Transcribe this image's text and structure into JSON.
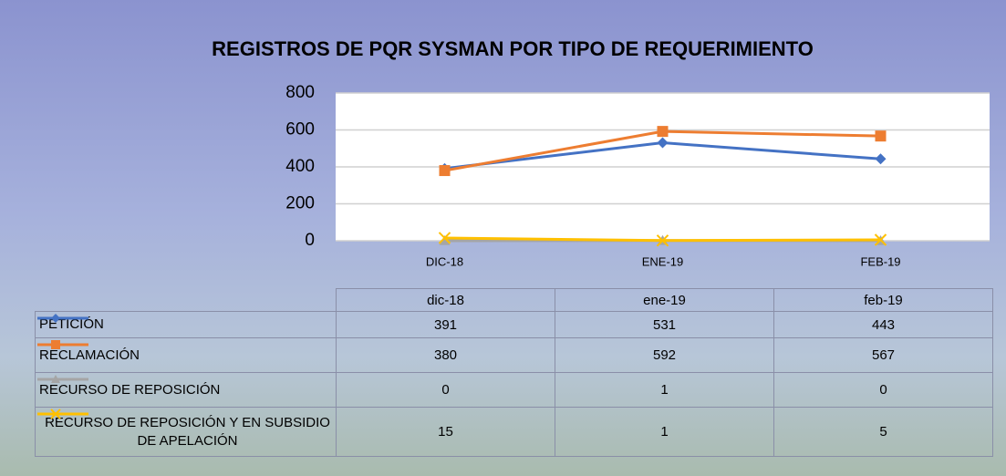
{
  "chart_data": {
    "type": "line",
    "title": "REGISTROS DE PQR SYSMAN  POR TIPO DE REQUERIMIENTO",
    "categories": [
      "DIC-18",
      "ENE-19",
      "FEB-19"
    ],
    "table_header": [
      "dic-18",
      "ene-19",
      "feb-19"
    ],
    "series": [
      {
        "name": "PETICIÓN",
        "color": "#4472c4",
        "marker": "diamond",
        "values": [
          391,
          531,
          443
        ]
      },
      {
        "name": "RECLAMACIÓN",
        "color": "#ed7d31",
        "marker": "square",
        "values": [
          380,
          592,
          567
        ]
      },
      {
        "name": "RECURSO DE REPOSICIÓN",
        "color": "#a5a5a5",
        "marker": "triangle",
        "values": [
          0,
          1,
          0
        ]
      },
      {
        "name": "RECURSO DE REPOSICIÓN Y EN SUBSIDIO DE APELACIÓN",
        "color": "#ffc000",
        "marker": "x",
        "values": [
          15,
          1,
          5
        ]
      }
    ],
    "ylim": [
      0,
      800
    ],
    "yticks": [
      0,
      200,
      400,
      600,
      800
    ],
    "grid": true
  }
}
